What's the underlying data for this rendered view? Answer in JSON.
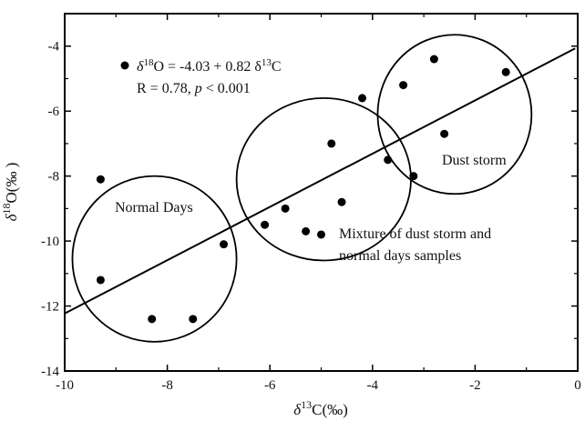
{
  "chart_data": {
    "type": "scatter",
    "xlabel": {
      "prefix": "δ",
      "sup": "13",
      "suffix": "C(‰)"
    },
    "ylabel": {
      "prefix": "δ",
      "sup": "18",
      "suffix": "O(‰ )"
    },
    "xlim": [
      -10,
      0
    ],
    "ylim": [
      -14,
      -3
    ],
    "x_ticks": [
      -10,
      -8,
      -6,
      -4,
      -2,
      0
    ],
    "y_ticks": [
      -14,
      -12,
      -10,
      -8,
      -6,
      -4
    ],
    "x_tick_labels": [
      "-10",
      "-8",
      "-6",
      "-4",
      "-2",
      "0"
    ],
    "y_tick_labels": [
      "-14",
      "-12",
      "-10",
      "-8",
      "-6",
      "-4"
    ],
    "grid": false,
    "points": [
      {
        "x": -9.3,
        "y": -8.1
      },
      {
        "x": -9.3,
        "y": -11.2
      },
      {
        "x": -8.3,
        "y": -12.4
      },
      {
        "x": -7.5,
        "y": -12.4
      },
      {
        "x": -6.9,
        "y": -10.1
      },
      {
        "x": -6.1,
        "y": -9.5
      },
      {
        "x": -5.7,
        "y": -9.0
      },
      {
        "x": -5.3,
        "y": -9.7
      },
      {
        "x": -5.0,
        "y": -9.8
      },
      {
        "x": -4.8,
        "y": -7.0
      },
      {
        "x": -4.6,
        "y": -8.8
      },
      {
        "x": -4.2,
        "y": -5.6
      },
      {
        "x": -3.7,
        "y": -7.5
      },
      {
        "x": -3.4,
        "y": -5.2
      },
      {
        "x": -3.2,
        "y": -8.0
      },
      {
        "x": -2.8,
        "y": -4.4
      },
      {
        "x": -2.6,
        "y": -6.7
      },
      {
        "x": -1.4,
        "y": -4.8
      }
    ],
    "regression": {
      "intercept": -4.03,
      "slope": 0.82,
      "x_range": [
        -10,
        -0.05
      ]
    },
    "equation": {
      "prefix": "δ",
      "sup1": "18",
      "mid": "O = -4.03 + 0.82 δ",
      "sup2": "13",
      "suffix": "C"
    },
    "stats": {
      "r": "R = 0.78, ",
      "p": "p",
      "p_rest": " < 0.001"
    },
    "groups": [
      {
        "label": "Normal Days",
        "cx": -8.25,
        "cy": -10.55,
        "rx": 1.6,
        "ry": 2.55
      },
      {
        "label": "Mixture of dust storm and",
        "label2": "normal days samples",
        "cx": -4.95,
        "cy": -8.1,
        "rx": 1.7,
        "ry": 2.5
      },
      {
        "label": "Dust storm",
        "cx": -2.4,
        "cy": -6.1,
        "rx": 1.5,
        "ry": 2.45
      }
    ]
  }
}
